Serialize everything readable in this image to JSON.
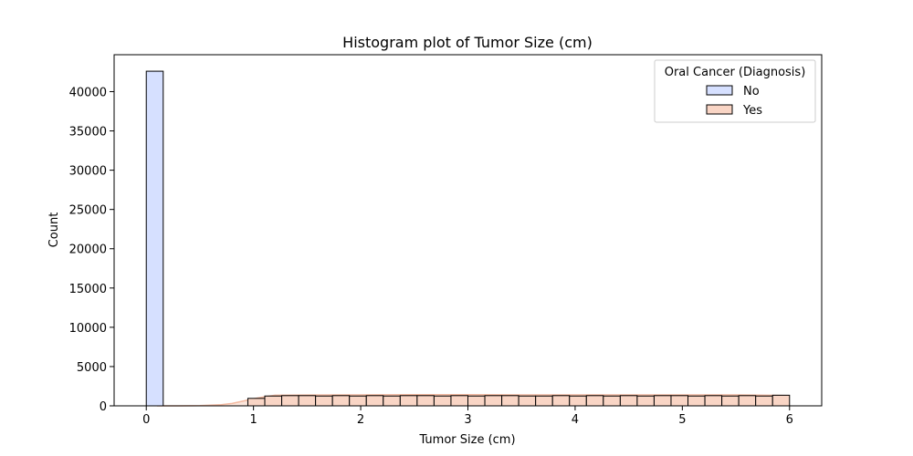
{
  "chart_data": {
    "type": "bar",
    "title": "Histogram plot of Tumor Size (cm)",
    "xlabel": "Tumor Size (cm)",
    "ylabel": "Count",
    "xlim": [
      -0.3,
      6.3
    ],
    "ylim": [
      0,
      44700
    ],
    "xticks": [
      0,
      1,
      2,
      3,
      4,
      5,
      6
    ],
    "yticks": [
      0,
      5000,
      10000,
      15000,
      20000,
      25000,
      30000,
      35000,
      40000
    ],
    "bin_width": 0.1579,
    "legend": {
      "title": "Oral Cancer (Diagnosis)",
      "placement": "top-right",
      "entries": [
        "No",
        "Yes"
      ]
    },
    "colors": {
      "No": "#d6e0ff",
      "Yes": "#f9d5c5",
      "edge": "#000000",
      "kde": "#f4b9a0"
    },
    "series": [
      {
        "name": "No",
        "bins": [
          {
            "x0": 0.0,
            "x1": 0.1579,
            "count": 42600
          }
        ]
      },
      {
        "name": "Yes",
        "bins": [
          {
            "x0": 0.9474,
            "x1": 1.1053,
            "count": 950
          },
          {
            "x0": 1.1053,
            "x1": 1.2632,
            "count": 1250
          },
          {
            "x0": 1.2632,
            "x1": 1.4211,
            "count": 1300
          },
          {
            "x0": 1.4211,
            "x1": 1.5789,
            "count": 1300
          },
          {
            "x0": 1.5789,
            "x1": 1.7368,
            "count": 1250
          },
          {
            "x0": 1.7368,
            "x1": 1.8947,
            "count": 1300
          },
          {
            "x0": 1.8947,
            "x1": 2.0526,
            "count": 1250
          },
          {
            "x0": 2.0526,
            "x1": 2.2105,
            "count": 1300
          },
          {
            "x0": 2.2105,
            "x1": 2.3684,
            "count": 1250
          },
          {
            "x0": 2.3684,
            "x1": 2.5263,
            "count": 1300
          },
          {
            "x0": 2.5263,
            "x1": 2.6842,
            "count": 1300
          },
          {
            "x0": 2.6842,
            "x1": 2.8421,
            "count": 1250
          },
          {
            "x0": 2.8421,
            "x1": 3.0,
            "count": 1300
          },
          {
            "x0": 3.0,
            "x1": 3.1579,
            "count": 1250
          },
          {
            "x0": 3.1579,
            "x1": 3.3158,
            "count": 1300
          },
          {
            "x0": 3.3158,
            "x1": 3.4737,
            "count": 1300
          },
          {
            "x0": 3.4737,
            "x1": 3.6316,
            "count": 1250
          },
          {
            "x0": 3.6316,
            "x1": 3.7895,
            "count": 1250
          },
          {
            "x0": 3.7895,
            "x1": 3.9474,
            "count": 1300
          },
          {
            "x0": 3.9474,
            "x1": 4.1053,
            "count": 1250
          },
          {
            "x0": 4.1053,
            "x1": 4.2632,
            "count": 1300
          },
          {
            "x0": 4.2632,
            "x1": 4.4211,
            "count": 1250
          },
          {
            "x0": 4.4211,
            "x1": 4.5789,
            "count": 1300
          },
          {
            "x0": 4.5789,
            "x1": 4.7368,
            "count": 1250
          },
          {
            "x0": 4.7368,
            "x1": 4.8947,
            "count": 1300
          },
          {
            "x0": 4.8947,
            "x1": 5.0526,
            "count": 1300
          },
          {
            "x0": 5.0526,
            "x1": 5.2105,
            "count": 1250
          },
          {
            "x0": 5.2105,
            "x1": 5.3684,
            "count": 1300
          },
          {
            "x0": 5.3684,
            "x1": 5.5263,
            "count": 1250
          },
          {
            "x0": 5.5263,
            "x1": 5.6842,
            "count": 1300
          },
          {
            "x0": 5.6842,
            "x1": 5.8421,
            "count": 1250
          },
          {
            "x0": 5.8421,
            "x1": 6.0,
            "count": 1350
          }
        ]
      }
    ],
    "kde": {
      "series": "Yes",
      "x": [
        0.1,
        0.3,
        0.5,
        0.7,
        0.8,
        0.9,
        1.0,
        1.1,
        1.2,
        1.5,
        2.0,
        2.5,
        3.0,
        3.5,
        4.0,
        4.5,
        5.0,
        5.5,
        5.8,
        6.0
      ],
      "y": [
        0,
        5,
        30,
        150,
        300,
        600,
        900,
        1150,
        1350,
        1380,
        1400,
        1420,
        1420,
        1400,
        1400,
        1390,
        1400,
        1390,
        1350,
        1300
      ]
    }
  }
}
